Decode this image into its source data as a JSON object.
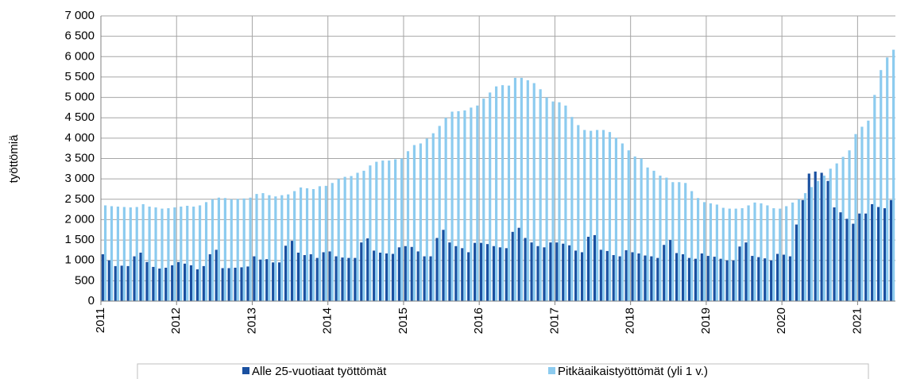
{
  "chart_data": {
    "type": "bar",
    "ylabel": "työttömiä",
    "categories": [
      "2011",
      null,
      null,
      null,
      null,
      null,
      null,
      null,
      null,
      null,
      null,
      null,
      "2012",
      null,
      null,
      null,
      null,
      null,
      null,
      null,
      null,
      null,
      null,
      null,
      "2013",
      null,
      null,
      null,
      null,
      null,
      null,
      null,
      null,
      null,
      null,
      null,
      "2014",
      null,
      null,
      null,
      null,
      null,
      null,
      null,
      null,
      null,
      null,
      null,
      "2015",
      null,
      null,
      null,
      null,
      null,
      null,
      null,
      null,
      null,
      null,
      null,
      "2016",
      null,
      null,
      null,
      null,
      null,
      null,
      null,
      null,
      null,
      null,
      null,
      "2017",
      null,
      null,
      null,
      null,
      null,
      null,
      null,
      null,
      null,
      null,
      null,
      "2018",
      null,
      null,
      null,
      null,
      null,
      null,
      null,
      null,
      null,
      null,
      null,
      "2019",
      null,
      null,
      null,
      null,
      null,
      null,
      null,
      null,
      null,
      null,
      null,
      "2020",
      null,
      null,
      null,
      null,
      null,
      null,
      null,
      null,
      null,
      null,
      null,
      "2021",
      null,
      null,
      null,
      null,
      null
    ],
    "series": [
      {
        "name": "Alle 25-vuotiaat työttömät",
        "color": "#1a50a0",
        "values": [
          1150,
          1000,
          860,
          870,
          860,
          1100,
          1190,
          960,
          840,
          800,
          820,
          880,
          960,
          920,
          880,
          780,
          860,
          1150,
          1260,
          810,
          810,
          820,
          830,
          850,
          1100,
          1020,
          1030,
          950,
          950,
          1360,
          1480,
          1190,
          1130,
          1150,
          1060,
          1200,
          1220,
          1100,
          1070,
          1060,
          1060,
          1440,
          1540,
          1240,
          1190,
          1170,
          1160,
          1320,
          1350,
          1330,
          1220,
          1100,
          1100,
          1550,
          1750,
          1440,
          1350,
          1300,
          1200,
          1430,
          1430,
          1400,
          1350,
          1320,
          1300,
          1700,
          1800,
          1550,
          1440,
          1350,
          1320,
          1440,
          1440,
          1410,
          1370,
          1240,
          1200,
          1580,
          1620,
          1260,
          1230,
          1130,
          1100,
          1250,
          1200,
          1170,
          1120,
          1100,
          1060,
          1380,
          1500,
          1180,
          1150,
          1060,
          1040,
          1170,
          1110,
          1090,
          1040,
          1000,
          1000,
          1340,
          1440,
          1110,
          1080,
          1050,
          1000,
          1160,
          1140,
          1100,
          1880,
          2480,
          3130,
          3180,
          3150,
          2950,
          2300,
          2180,
          2020,
          1900,
          2150,
          2150,
          2380,
          2310,
          2280,
          2480
        ]
      },
      {
        "name": "Pitkäaikaistyöttömät (yli 1 v.)",
        "color": "#8ccbef",
        "values": [
          2350,
          2330,
          2320,
          2310,
          2300,
          2310,
          2380,
          2320,
          2300,
          2270,
          2280,
          2300,
          2320,
          2340,
          2320,
          2350,
          2430,
          2500,
          2540,
          2530,
          2500,
          2510,
          2520,
          2540,
          2630,
          2650,
          2600,
          2570,
          2600,
          2620,
          2700,
          2790,
          2770,
          2750,
          2820,
          2830,
          2900,
          3000,
          3050,
          3070,
          3150,
          3200,
          3330,
          3420,
          3450,
          3450,
          3480,
          3500,
          3680,
          3830,
          3870,
          3990,
          4120,
          4300,
          4500,
          4650,
          4660,
          4680,
          4750,
          4800,
          4970,
          5120,
          5270,
          5300,
          5290,
          5480,
          5480,
          5420,
          5350,
          5200,
          5000,
          4900,
          4880,
          4800,
          4520,
          4320,
          4200,
          4180,
          4200,
          4200,
          4150,
          4010,
          3870,
          3700,
          3550,
          3500,
          3280,
          3200,
          3080,
          3030,
          2920,
          2920,
          2900,
          2700,
          2530,
          2430,
          2400,
          2370,
          2290,
          2270,
          2270,
          2280,
          2350,
          2420,
          2400,
          2350,
          2280,
          2270,
          2330,
          2420,
          2500,
          2650,
          2800,
          2950,
          3080,
          3250,
          3380,
          3540,
          3700,
          4100,
          4280,
          4430,
          5060,
          5670,
          5980,
          6170
        ]
      }
    ],
    "ylim": [
      0,
      7000
    ],
    "yticks": [
      0,
      {
        "value": 500,
        "label": "500"
      },
      {
        "value": 1000,
        "label": "1 000"
      },
      {
        "value": 1500,
        "label": "1 500"
      },
      {
        "value": 2000,
        "label": "2 000"
      },
      {
        "value": 2500,
        "label": "2 500"
      },
      {
        "value": 3000,
        "label": "3 000"
      },
      {
        "value": 3500,
        "label": "3 500"
      },
      {
        "value": 4000,
        "label": "4 000"
      },
      {
        "value": 4500,
        "label": "4 500"
      },
      {
        "value": 5000,
        "label": "5 000"
      },
      {
        "value": 5500,
        "label": "5 500"
      },
      {
        "value": 6000,
        "label": "6 000"
      },
      {
        "value": 6500,
        "label": "6 500"
      },
      {
        "value": 7000,
        "label": "7 000"
      }
    ],
    "grid": true,
    "legend": "bottom"
  }
}
